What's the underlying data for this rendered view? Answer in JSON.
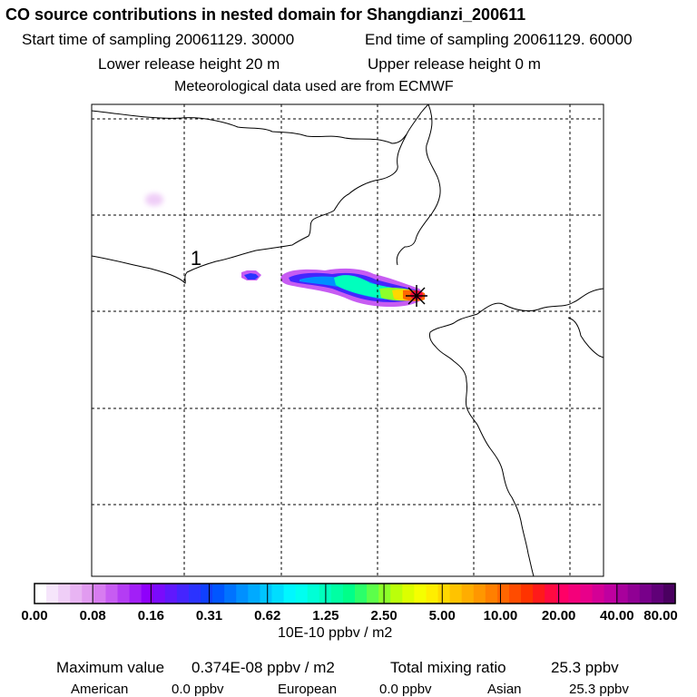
{
  "header": {
    "title": "CO  source contributions in nested domain for Shangdianzi_200611",
    "start_sampling": "Start time of sampling 20061129. 30000",
    "end_sampling": "End time of sampling 20061129. 60000",
    "lower_release": "Lower release height   20 m",
    "upper_release": "Upper release height    0 m",
    "met_data": "Meteorological data used are from ECMWF"
  },
  "map": {
    "contour_label": "1",
    "colors": {
      "border": "#000000",
      "grid": "#000000",
      "receptor": "#000000"
    }
  },
  "colorbar": {
    "tick_labels": [
      "0.00",
      "0.08",
      "0.16",
      "0.31",
      "0.62",
      "1.25",
      "2.50",
      "5.00",
      "10.00",
      "20.00",
      "40.00",
      "80.00"
    ],
    "colors": [
      "#ffffff",
      "#f6e5fb",
      "#efcef7",
      "#e8b4f3",
      "#e19bf0",
      "#d77cf0",
      "#c75cf2",
      "#b43cf4",
      "#a21ff7",
      "#8f00fb",
      "#7a0bfc",
      "#6018fd",
      "#4525fe",
      "#2b33ff",
      "#1040ff",
      "#0056ff",
      "#0073ff",
      "#0090ff",
      "#00aaff",
      "#00c4ff",
      "#00ddff",
      "#00f7ff",
      "#00fff0",
      "#00ffd6",
      "#00ffbd",
      "#00ffa3",
      "#00ff89",
      "#2bff6a",
      "#5cff4a",
      "#8cff2a",
      "#bbff0a",
      "#dcff00",
      "#f5ff00",
      "#ffee00",
      "#ffd800",
      "#ffc300",
      "#ffad00",
      "#ff9700",
      "#ff7f00",
      "#ff6600",
      "#ff4c00",
      "#ff3300",
      "#ff1a1a",
      "#ff0a40",
      "#ff0066",
      "#f4007a",
      "#e8008a",
      "#d40096",
      "#bf00a0",
      "#a8009c",
      "#900094",
      "#78008a",
      "#600078",
      "#4a0060"
    ],
    "units": "10E-10 ppbv / m2"
  },
  "summary": {
    "max_label": "Maximum value",
    "max_value": "0.374E-08 ppbv / m2",
    "total_label": "Total mixing ratio",
    "total_value": "25.3 ppbv",
    "american_label": "American",
    "american_value": "0.0 ppbv",
    "european_label": "European",
    "european_value": "0.0 ppbv",
    "asian_label": "Asian",
    "asian_value": "25.3 ppbv"
  }
}
